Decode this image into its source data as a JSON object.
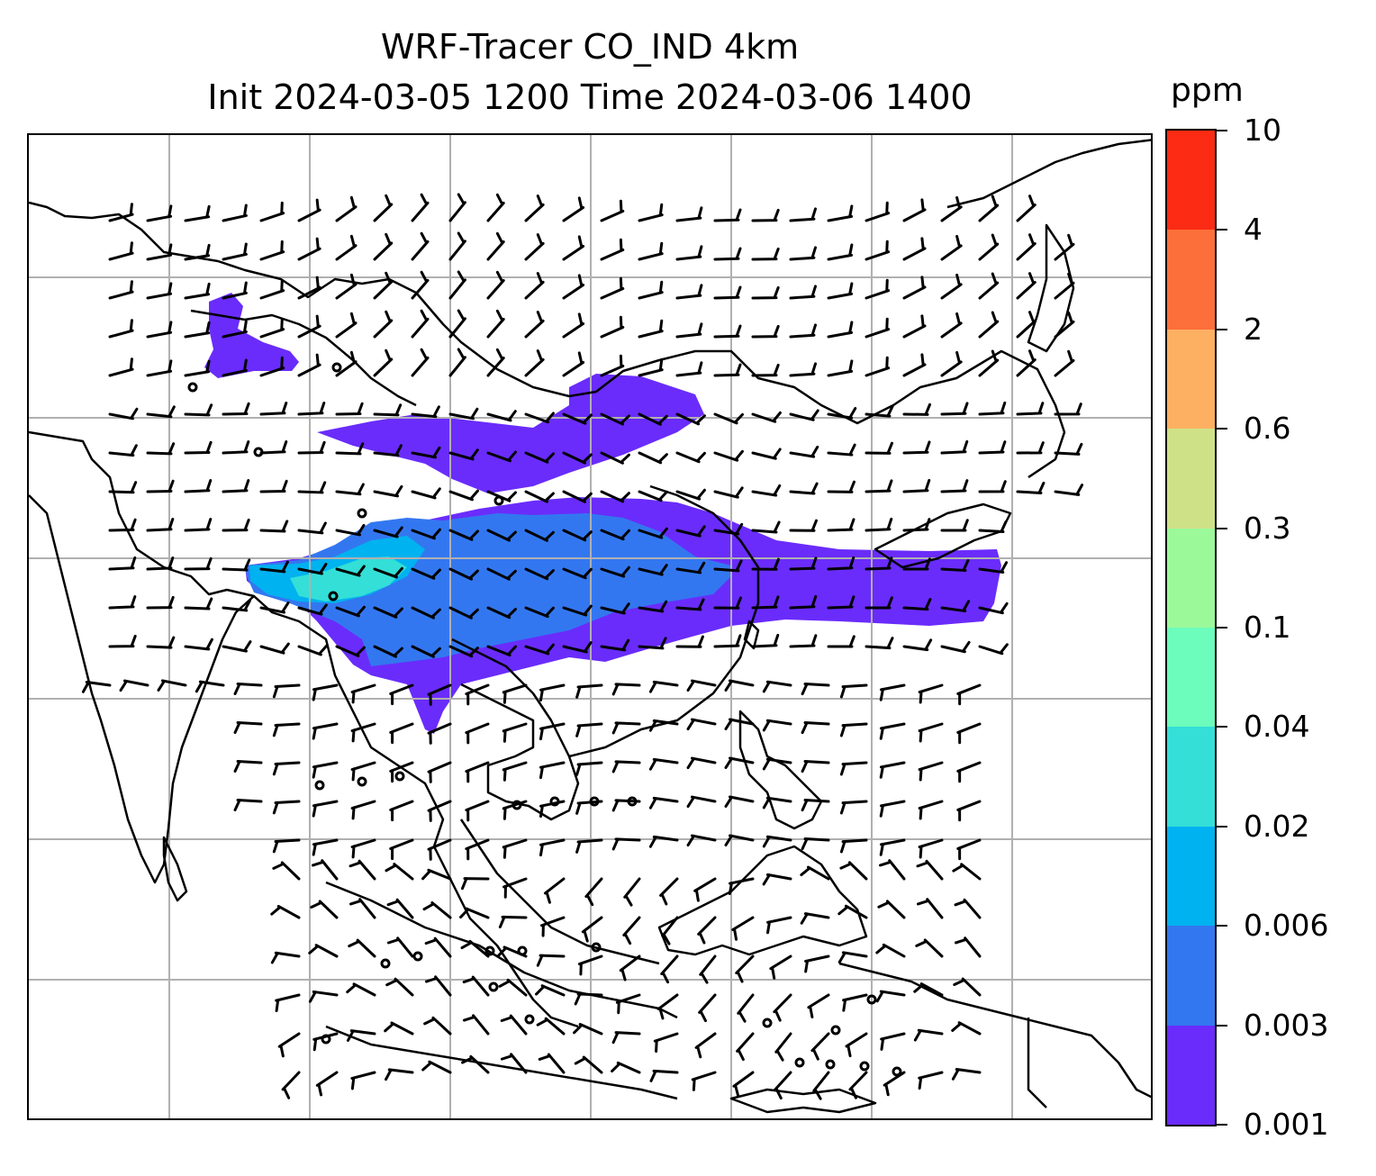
{
  "title": {
    "line1": "WRF-Tracer CO_IND 4km",
    "line2": "Init 2024-03-05 1200 Time 2024-03-06 1400"
  },
  "colorbar": {
    "unit": "ppm",
    "levels": [
      "0.001",
      "0.003",
      "0.006",
      "0.02",
      "0.04",
      "0.1",
      "0.3",
      "0.6",
      "2",
      "4",
      "10"
    ],
    "colors": [
      "#6a2cfb",
      "#3377f0",
      "#00b2ef",
      "#33dfd7",
      "#6cfcbc",
      "#9cf99a",
      "#cfe187",
      "#fdb062",
      "#fd6f3a",
      "#fb2b14"
    ]
  },
  "map": {
    "gridlines": true,
    "colors": {
      "coast": "#000000",
      "grid": "#b0b0b0",
      "background": "#ffffff"
    },
    "plume_level_colors": {
      "low": "#6a2cfb",
      "mid": "#3377f0",
      "high": "#00b2ef",
      "peak": "#33dfd7"
    }
  }
}
